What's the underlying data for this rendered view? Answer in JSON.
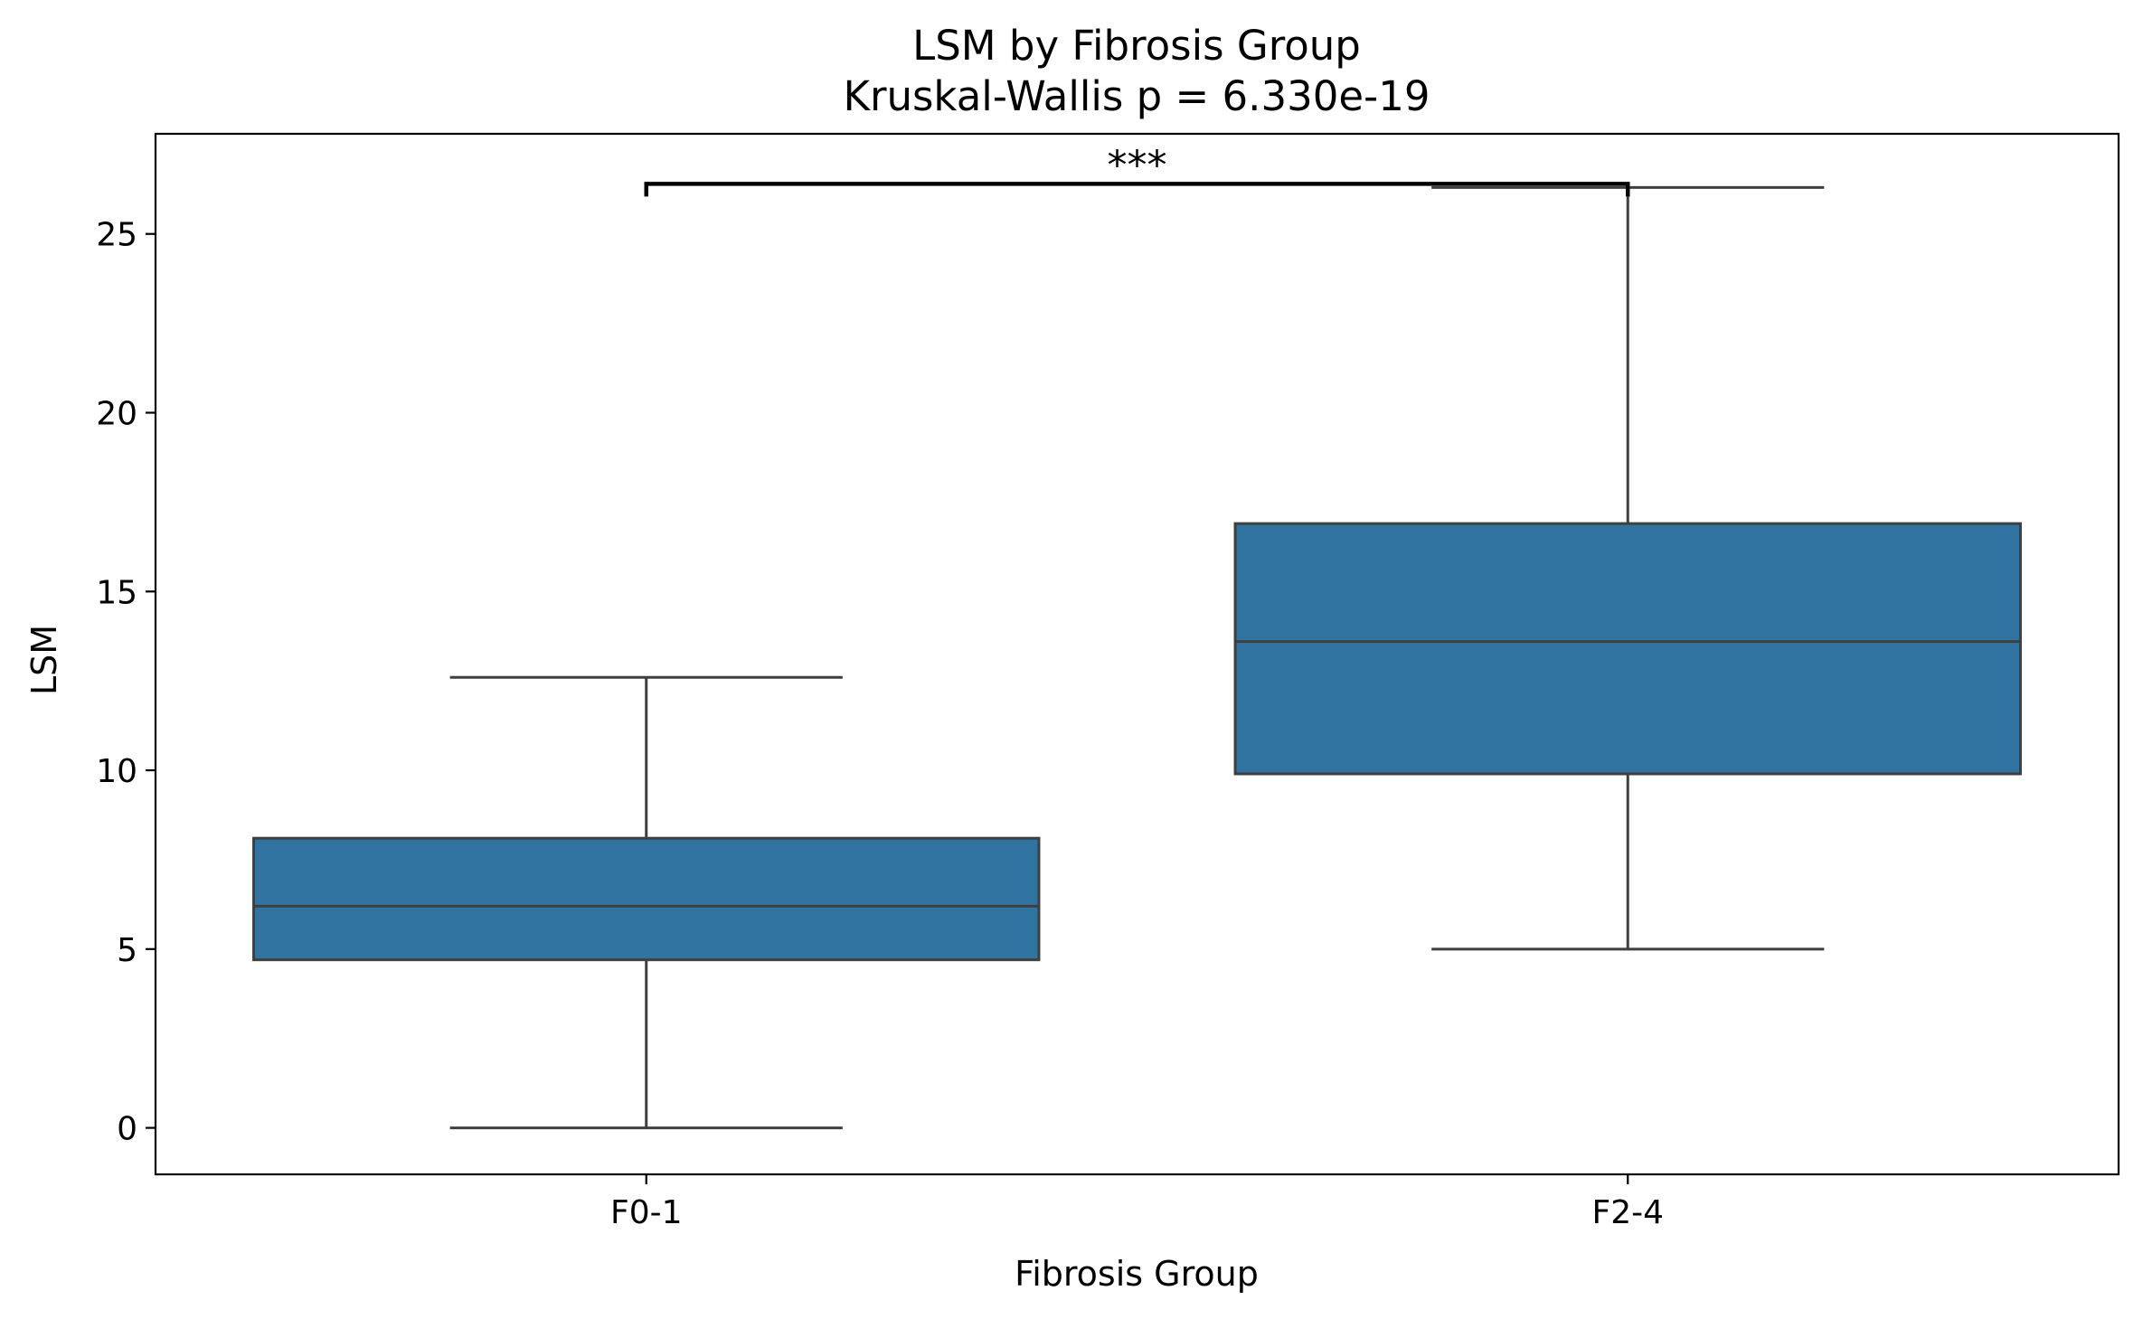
{
  "chart_data": {
    "type": "box",
    "title": "LSM by Fibrosis Group",
    "subtitle": "Kruskal-Wallis p = 6.330e-19",
    "xlabel": "Fibrosis Group",
    "ylabel": "LSM",
    "categories": [
      "F0-1",
      "F2-4"
    ],
    "boxes": [
      {
        "category": "F0-1",
        "whisker_low": 0.0,
        "q1": 4.7,
        "median": 6.2,
        "q3": 8.1,
        "whisker_high": 12.6
      },
      {
        "category": "F2-4",
        "whisker_low": 5.0,
        "q1": 9.9,
        "median": 13.6,
        "q3": 16.9,
        "whisker_high": 26.3
      }
    ],
    "ylim": [
      -1.3,
      27.8
    ],
    "yticks": [
      0,
      5,
      10,
      15,
      20,
      25
    ],
    "significance": {
      "between": [
        "F0-1",
        "F2-4"
      ],
      "label": "***",
      "y": 26.4
    },
    "box_color": "#3274a1",
    "line_color": "#3f3f3f",
    "grid": false,
    "legend": "none"
  }
}
